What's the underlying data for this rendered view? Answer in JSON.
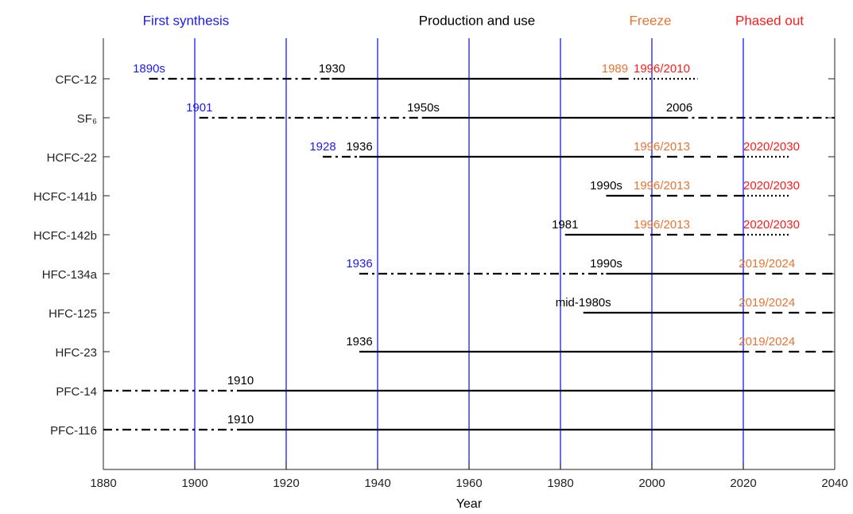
{
  "chart_data": {
    "type": "timeline",
    "headers": [
      {
        "text": "First synthesis",
        "color": "#1a1aff"
      },
      {
        "text": "Production and use",
        "color": "#000000"
      },
      {
        "text": "Freeze",
        "color": "#e87432"
      },
      {
        "text": "Phased out",
        "color": "#ff1a1a"
      }
    ],
    "x_label": "Year",
    "xlim": [
      1880,
      2040
    ],
    "xticks": [
      1880,
      1900,
      1920,
      1940,
      1960,
      1980,
      2000,
      2020,
      2040
    ],
    "marker_lines": [
      1900,
      1920,
      1940,
      1960,
      1980,
      2000,
      2020
    ],
    "marker_color": "#1a1aff",
    "line_color": "#000000",
    "rows": [
      {
        "name": "CFC-12",
        "segments": [
          {
            "from": 1890,
            "to": 1930,
            "style": "dashdot",
            "label": "1890s",
            "label_color": "#1a1aff"
          },
          {
            "from": 1930,
            "to": 1989,
            "style": "solid",
            "label": "1930",
            "label_color": "#000000"
          },
          {
            "from": 1989,
            "to": 1996,
            "style": "dashed",
            "label": "1989",
            "label_color": "#e87432"
          },
          {
            "from": 1996,
            "to": 2010,
            "style": "dotted",
            "label": "1996/2010",
            "label_color": "#ff1a1a"
          }
        ]
      },
      {
        "name": "SF₆",
        "segments": [
          {
            "from": 1901,
            "to": 1950,
            "style": "dashdot",
            "label": "1901",
            "label_color": "#1a1aff"
          },
          {
            "from": 1950,
            "to": 2006,
            "style": "solid",
            "label": "1950s",
            "label_color": "#000000"
          },
          {
            "from": 2006,
            "to": 2040,
            "style": "dashdot",
            "label": "2006",
            "label_color": "#000000"
          }
        ]
      },
      {
        "name": "HCFC-22",
        "segments": [
          {
            "from": 1928,
            "to": 1936,
            "style": "dashdot",
            "label": "1928",
            "label_color": "#1a1aff"
          },
          {
            "from": 1936,
            "to": 1996,
            "style": "solid",
            "label": "1936",
            "label_color": "#000000"
          },
          {
            "from": 1996,
            "to": 2020,
            "style": "dashed",
            "label": "1996/2013",
            "label_color": "#e87432"
          },
          {
            "from": 2020,
            "to": 2030,
            "style": "dotted",
            "label": "2020/2030",
            "label_color": "#ff1a1a"
          }
        ]
      },
      {
        "name": "HCFC-141b",
        "segments": [
          {
            "from": 1990,
            "to": 1996,
            "style": "solid",
            "label": "1990s",
            "label_color": "#000000"
          },
          {
            "from": 1996,
            "to": 2020,
            "style": "dashed",
            "label": "1996/2013",
            "label_color": "#e87432"
          },
          {
            "from": 2020,
            "to": 2030,
            "style": "dotted",
            "label": "2020/2030",
            "label_color": "#ff1a1a"
          }
        ]
      },
      {
        "name": "HCFC-142b",
        "segments": [
          {
            "from": 1981,
            "to": 1996,
            "style": "solid",
            "label": "1981",
            "label_color": "#000000"
          },
          {
            "from": 1996,
            "to": 2020,
            "style": "dashed",
            "label": "1996/2013",
            "label_color": "#e87432"
          },
          {
            "from": 2020,
            "to": 2030,
            "style": "dotted",
            "label": "2020/2030",
            "label_color": "#ff1a1a"
          }
        ]
      },
      {
        "name": "HFC-134a",
        "segments": [
          {
            "from": 1936,
            "to": 1990,
            "style": "dashdot",
            "label": "1936",
            "label_color": "#1a1aff"
          },
          {
            "from": 1990,
            "to": 2019,
            "style": "solid",
            "label": "1990s",
            "label_color": "#000000"
          },
          {
            "from": 2019,
            "to": 2040,
            "style": "dashed",
            "label": "2019/2024",
            "label_color": "#e87432"
          }
        ]
      },
      {
        "name": "HFC-125",
        "segments": [
          {
            "from": 1985,
            "to": 2019,
            "style": "solid",
            "label": "mid-1980s",
            "label_color": "#000000"
          },
          {
            "from": 2019,
            "to": 2040,
            "style": "dashed",
            "label": "2019/2024",
            "label_color": "#e87432"
          }
        ]
      },
      {
        "name": "HFC-23",
        "segments": [
          {
            "from": 1936,
            "to": 2019,
            "style": "solid",
            "label": "1936",
            "label_color": "#000000"
          },
          {
            "from": 2019,
            "to": 2040,
            "style": "dashed",
            "label": "2019/2024",
            "label_color": "#e87432"
          }
        ]
      },
      {
        "name": "PFC-14",
        "segments": [
          {
            "from": 1880,
            "to": 1910,
            "style": "dashdot"
          },
          {
            "from": 1910,
            "to": 2040,
            "style": "solid",
            "label": "1910",
            "label_color": "#000000"
          }
        ]
      },
      {
        "name": "PFC-116",
        "segments": [
          {
            "from": 1880,
            "to": 1910,
            "style": "dashdot"
          },
          {
            "from": 1910,
            "to": 2040,
            "style": "solid",
            "label": "1910",
            "label_color": "#000000"
          }
        ]
      }
    ]
  }
}
